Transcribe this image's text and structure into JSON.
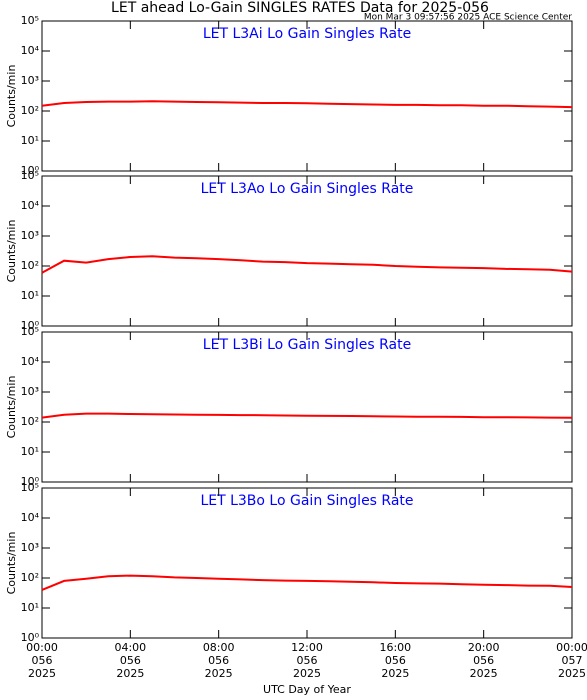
{
  "title": "LET ahead Lo-Gain SINGLES RATES Data for 2025-056",
  "subtitle": "Mon Mar  3 09:57:56 2025 ACE Science Center",
  "xlabel": "UTC Day of Year",
  "xlim": [
    0,
    24
  ],
  "xticks": [
    {
      "value": 0,
      "label": "00:00\n056\n2025"
    },
    {
      "value": 4,
      "label": "04:00\n056\n2025"
    },
    {
      "value": 8,
      "label": "08:00\n056\n2025"
    },
    {
      "value": 12,
      "label": "12:00\n056\n2025"
    },
    {
      "value": 16,
      "label": "16:00\n056\n2025"
    },
    {
      "value": 20,
      "label": "20:00\n056\n2025"
    },
    {
      "value": 24,
      "label": "00:00\n057\n2025"
    }
  ],
  "x": [
    0,
    1,
    2,
    3,
    4,
    5,
    6,
    7,
    8,
    9,
    10,
    11,
    12,
    13,
    14,
    15,
    16,
    17,
    18,
    19,
    20,
    21,
    22,
    23,
    24
  ],
  "chart_data": [
    {
      "type": "line",
      "title": "LET L3Ai Lo Gain Singles Rate",
      "ylabel": "Counts/min",
      "log_scale": true,
      "color": "#ff0000",
      "ylim": [
        1,
        100000
      ],
      "yticks": [
        {
          "value": 1,
          "label": "10⁰"
        },
        {
          "value": 10,
          "label": "10¹"
        },
        {
          "value": 100,
          "label": "10²"
        },
        {
          "value": 1000,
          "label": "10³"
        },
        {
          "value": 10000,
          "label": "10⁴"
        },
        {
          "value": 100000,
          "label": "10⁵"
        }
      ],
      "values": [
        150,
        185,
        200,
        205,
        205,
        210,
        205,
        200,
        195,
        190,
        185,
        185,
        180,
        175,
        170,
        165,
        160,
        160,
        155,
        155,
        150,
        150,
        145,
        140,
        135
      ]
    },
    {
      "type": "line",
      "title": "LET L3Ao Lo Gain Singles Rate",
      "ylabel": "Counts/min",
      "log_scale": true,
      "color": "#ff0000",
      "ylim": [
        1,
        100000
      ],
      "yticks": [
        {
          "value": 1,
          "label": "10⁰"
        },
        {
          "value": 10,
          "label": "10¹"
        },
        {
          "value": 100,
          "label": "10²"
        },
        {
          "value": 1000,
          "label": "10³"
        },
        {
          "value": 10000,
          "label": "10⁴"
        },
        {
          "value": 100000,
          "label": "10⁵"
        }
      ],
      "values": [
        60,
        150,
        130,
        170,
        200,
        210,
        190,
        180,
        170,
        155,
        140,
        135,
        125,
        120,
        115,
        110,
        100,
        95,
        90,
        88,
        85,
        80,
        78,
        75,
        65
      ]
    },
    {
      "type": "line",
      "title": "LET L3Bi Lo Gain Singles Rate",
      "ylabel": "Counts/min",
      "log_scale": true,
      "color": "#ff0000",
      "ylim": [
        1,
        100000
      ],
      "yticks": [
        {
          "value": 1,
          "label": "10⁰"
        },
        {
          "value": 10,
          "label": "10¹"
        },
        {
          "value": 100,
          "label": "10²"
        },
        {
          "value": 1000,
          "label": "10³"
        },
        {
          "value": 10000,
          "label": "10⁴"
        },
        {
          "value": 100000,
          "label": "10⁵"
        }
      ],
      "values": [
        140,
        175,
        190,
        190,
        185,
        180,
        178,
        175,
        172,
        170,
        168,
        165,
        162,
        160,
        158,
        155,
        152,
        150,
        150,
        148,
        145,
        145,
        142,
        140,
        138
      ]
    },
    {
      "type": "line",
      "title": "LET L3Bo Lo Gain Singles Rate",
      "ylabel": "Counts/min",
      "log_scale": true,
      "color": "#ff0000",
      "ylim": [
        1,
        100000
      ],
      "yticks": [
        {
          "value": 1,
          "label": "10⁰"
        },
        {
          "value": 10,
          "label": "10¹"
        },
        {
          "value": 100,
          "label": "10²"
        },
        {
          "value": 1000,
          "label": "10³"
        },
        {
          "value": 10000,
          "label": "10⁴"
        },
        {
          "value": 100000,
          "label": "10⁵"
        }
      ],
      "values": [
        40,
        80,
        95,
        115,
        120,
        115,
        105,
        100,
        95,
        90,
        85,
        82,
        80,
        78,
        75,
        72,
        68,
        66,
        65,
        62,
        60,
        58,
        56,
        55,
        50
      ]
    }
  ]
}
